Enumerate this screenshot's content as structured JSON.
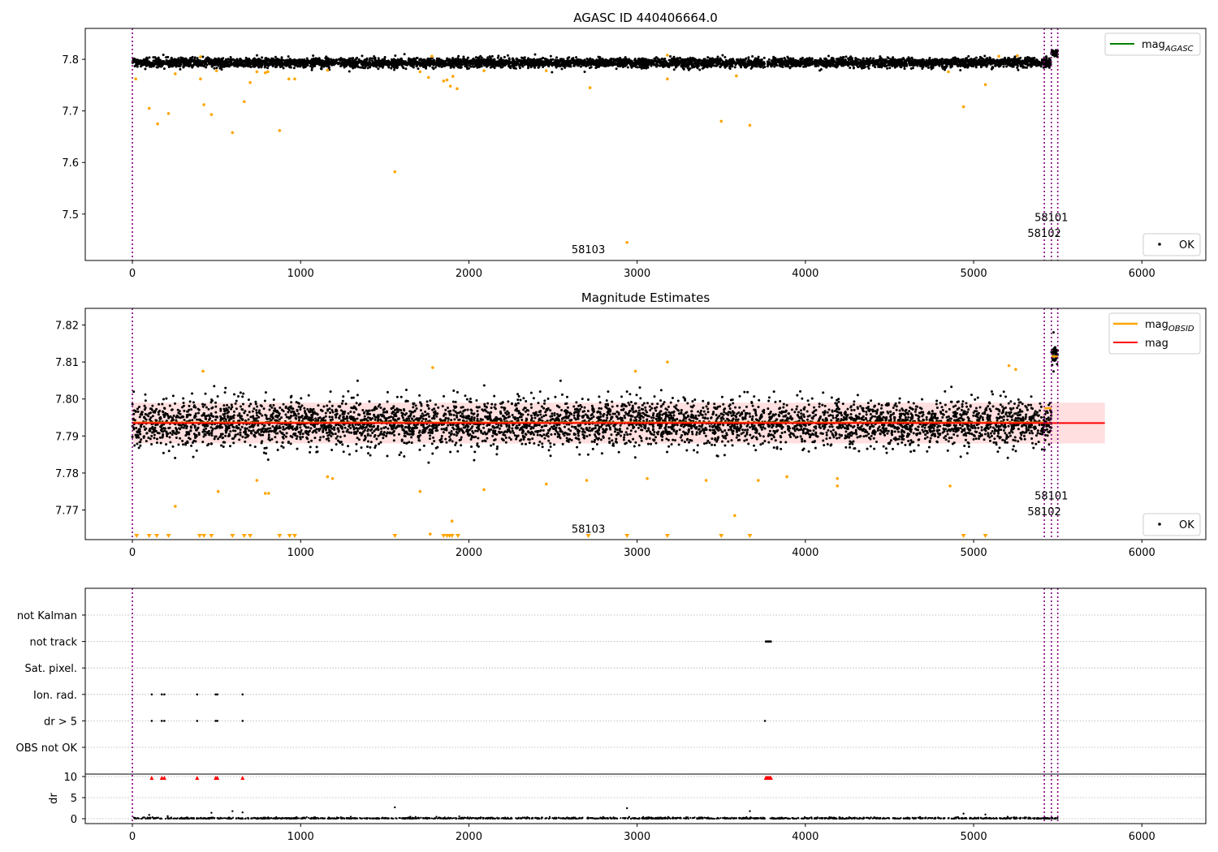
{
  "colors": {
    "ok_points": "#000000",
    "outlier_points": "#ffa500",
    "mag_line": "#ff0000",
    "mag_band": "#ffc0c0",
    "agasc_line": "#008000",
    "obsid_line": "#ffa500",
    "obs_boundary": "#800080",
    "flag_marker": "#ff0000",
    "grid": "#b0b0b0"
  },
  "chart_data": [
    {
      "id": "panel-agasc",
      "type": "scatter",
      "title": "AGASC ID 440406664.0",
      "xlim": [
        -280,
        6380
      ],
      "ylim": [
        7.41,
        7.86
      ],
      "xticks": [
        0,
        1000,
        2000,
        3000,
        4000,
        5000,
        6000
      ],
      "xtick_labels": [
        "0",
        "1000",
        "2000",
        "3000",
        "4000",
        "5000",
        "6000"
      ],
      "yticks": [
        7.5,
        7.6,
        7.7,
        7.8
      ],
      "ytick_labels": [
        "7.5",
        "7.6",
        "7.7",
        "7.8"
      ],
      "legends": [
        {
          "position": "top-right",
          "entries": [
            {
              "kind": "line",
              "label": "mag",
              "sub": "AGASC",
              "color": "#008000"
            }
          ]
        },
        {
          "position": "bottom-right",
          "entries": [
            {
              "kind": "dot",
              "label": "OK",
              "color": "#000000"
            }
          ]
        }
      ],
      "obs_boundaries": [
        0,
        5420,
        5462,
        5500
      ],
      "obs_labels": [
        {
          "text": "58101",
          "x": 5462,
          "y": 7.486
        },
        {
          "text": "58102",
          "x": 5420,
          "y": 7.456
        },
        {
          "text": "58103",
          "x": 2710,
          "y": 7.424
        }
      ],
      "ok_band": {
        "x_ranges": [
          [
            0,
            3760
          ],
          [
            3775,
            5420
          ],
          [
            5420,
            5462
          ]
        ],
        "center": 7.7935,
        "spread": 0.008,
        "bump": {
          "from": 5462,
          "to": 5500,
          "center": 7.812,
          "spread": 0.006
        }
      },
      "outliers": [
        [
          20,
          7.762
        ],
        [
          100,
          7.705
        ],
        [
          150,
          7.675
        ],
        [
          215,
          7.695
        ],
        [
          255,
          7.772
        ],
        [
          405,
          7.762
        ],
        [
          425,
          7.712
        ],
        [
          470,
          7.693
        ],
        [
          500,
          7.778
        ],
        [
          595,
          7.658
        ],
        [
          665,
          7.718
        ],
        [
          700,
          7.755
        ],
        [
          740,
          7.776
        ],
        [
          790,
          7.774
        ],
        [
          805,
          7.776
        ],
        [
          875,
          7.662
        ],
        [
          930,
          7.762
        ],
        [
          965,
          7.762
        ],
        [
          1160,
          7.779
        ],
        [
          1560,
          7.582
        ],
        [
          1710,
          7.776
        ],
        [
          1760,
          7.765
        ],
        [
          1850,
          7.758
        ],
        [
          1870,
          7.76
        ],
        [
          1890,
          7.748
        ],
        [
          1905,
          7.767
        ],
        [
          1930,
          7.743
        ],
        [
          2090,
          7.778
        ],
        [
          2460,
          7.778
        ],
        [
          2720,
          7.745
        ],
        [
          2940,
          7.445
        ],
        [
          3180,
          7.762
        ],
        [
          3500,
          7.68
        ],
        [
          3590,
          7.768
        ],
        [
          3670,
          7.672
        ],
        [
          4850,
          7.776
        ],
        [
          4940,
          7.708
        ],
        [
          5070,
          7.751
        ],
        [
          405,
          7.805
        ],
        [
          1780,
          7.806
        ],
        [
          3180,
          7.808
        ],
        [
          5150,
          7.806
        ],
        [
          5260,
          7.807
        ]
      ]
    },
    {
      "id": "panel-estimates",
      "type": "scatter",
      "title": "Magnitude Estimates",
      "xlim": [
        -280,
        6380
      ],
      "ylim": [
        7.762,
        7.8245
      ],
      "xticks": [
        0,
        1000,
        2000,
        3000,
        4000,
        5000,
        6000
      ],
      "xtick_labels": [
        "0",
        "1000",
        "2000",
        "3000",
        "4000",
        "5000",
        "6000"
      ],
      "yticks": [
        7.77,
        7.78,
        7.79,
        7.8,
        7.81,
        7.82
      ],
      "ytick_labels": [
        "7.77",
        "7.78",
        "7.79",
        "7.80",
        "7.81",
        "7.82"
      ],
      "legends": [
        {
          "position": "top-right",
          "entries": [
            {
              "kind": "line",
              "label": "mag",
              "sub": "OBSID",
              "color": "#ffa500"
            },
            {
              "kind": "line",
              "label": "mag",
              "sub": "",
              "color": "#ff0000"
            }
          ]
        },
        {
          "position": "bottom-right",
          "entries": [
            {
              "kind": "dot",
              "label": "OK",
              "color": "#000000"
            }
          ]
        }
      ],
      "mag": 7.7935,
      "mag_band": [
        7.788,
        7.799
      ],
      "mag_band_x": [
        0,
        5780
      ],
      "obsid_segments": [
        {
          "x": [
            0,
            5420
          ],
          "mag": 7.7936
        },
        {
          "x": [
            5420,
            5462
          ],
          "mag": 7.7975
        },
        {
          "x": [
            5462,
            5500
          ],
          "mag": 7.8115
        }
      ],
      "obs_boundaries": [
        0,
        5420,
        5462,
        5500
      ],
      "obs_labels": [
        {
          "text": "58101",
          "x": 5462,
          "y": 7.7729
        },
        {
          "text": "58102",
          "x": 5420,
          "y": 7.7686
        },
        {
          "text": "58103",
          "x": 2710,
          "y": 7.7639
        }
      ],
      "ok_band": {
        "x_ranges": [
          [
            0,
            3760
          ],
          [
            3775,
            5420
          ],
          [
            5420,
            5462
          ]
        ],
        "center": 7.7935,
        "spread": 0.0055,
        "bump": {
          "from": 5462,
          "to": 5500,
          "center": 7.812,
          "spread": 0.004
        }
      },
      "outliers": [
        [
          420,
          7.8075
        ],
        [
          1785,
          7.8085
        ],
        [
          2990,
          7.8075
        ],
        [
          3180,
          7.81
        ],
        [
          5210,
          7.809
        ],
        [
          5250,
          7.808
        ],
        [
          510,
          7.775
        ],
        [
          790,
          7.7745
        ],
        [
          810,
          7.7745
        ],
        [
          740,
          7.778
        ],
        [
          1160,
          7.779
        ],
        [
          1190,
          7.7785
        ],
        [
          1710,
          7.775
        ],
        [
          2090,
          7.7755
        ],
        [
          2460,
          7.777
        ],
        [
          2700,
          7.778
        ],
        [
          3060,
          7.7785
        ],
        [
          3410,
          7.778
        ],
        [
          3720,
          7.778
        ],
        [
          3890,
          7.779
        ],
        [
          4190,
          7.7785
        ],
        [
          4190,
          7.7765
        ],
        [
          4860,
          7.7765
        ],
        [
          255,
          7.771
        ],
        [
          1900,
          7.767
        ],
        [
          3580,
          7.7685
        ],
        [
          1770,
          7.7635
        ]
      ],
      "clipped_outliers_x": [
        25,
        100,
        145,
        215,
        400,
        425,
        470,
        595,
        665,
        700,
        875,
        935,
        965,
        1560,
        1850,
        1870,
        1885,
        1900,
        1935,
        2710,
        2940,
        3180,
        3500,
        3670,
        4940,
        5070
      ]
    },
    {
      "id": "panel-flags",
      "type": "scatter",
      "title": "",
      "xlim": [
        -280,
        6380
      ],
      "xticks": [
        0,
        1000,
        2000,
        3000,
        4000,
        5000,
        6000
      ],
      "xtick_labels": [
        "0",
        "1000",
        "2000",
        "3000",
        "4000",
        "5000",
        "6000"
      ],
      "flag_labels": [
        "not Kalman",
        "not track",
        "Sat. pixel.",
        "Ion. rad.",
        "dr > 5",
        "OBS not OK"
      ],
      "flag_points": {
        "not track": [
          3765,
          3770,
          3775,
          3780,
          3785,
          3790,
          3795
        ],
        "Ion. rad.": [
          115,
          175,
          190,
          385,
          495,
          505,
          655
        ],
        "dr > 5": [
          115,
          175,
          190,
          385,
          495,
          505,
          655,
          3760
        ],
        "OBS not OK": []
      },
      "dr_axis": {
        "ylabel": "dr",
        "ylim": [
          -0.5,
          10.3
        ],
        "yticks": [
          0,
          5,
          10
        ],
        "ytick_labels": [
          "0",
          "5",
          "10"
        ],
        "clipped_x": [
          115,
          175,
          190,
          385,
          495,
          505,
          655,
          3765,
          3770,
          3775,
          3780,
          3785,
          3790,
          3795
        ],
        "outliers": [
          [
            100,
            0.9
          ],
          [
            210,
            0.6
          ],
          [
            470,
            1.4
          ],
          [
            595,
            1.8
          ],
          [
            655,
            1.5
          ],
          [
            1560,
            2.7
          ],
          [
            2940,
            2.5
          ],
          [
            3670,
            1.8
          ],
          [
            4940,
            1.2
          ],
          [
            5070,
            1.0
          ]
        ]
      },
      "obs_boundaries": [
        0,
        5420,
        5462,
        5500
      ]
    }
  ]
}
